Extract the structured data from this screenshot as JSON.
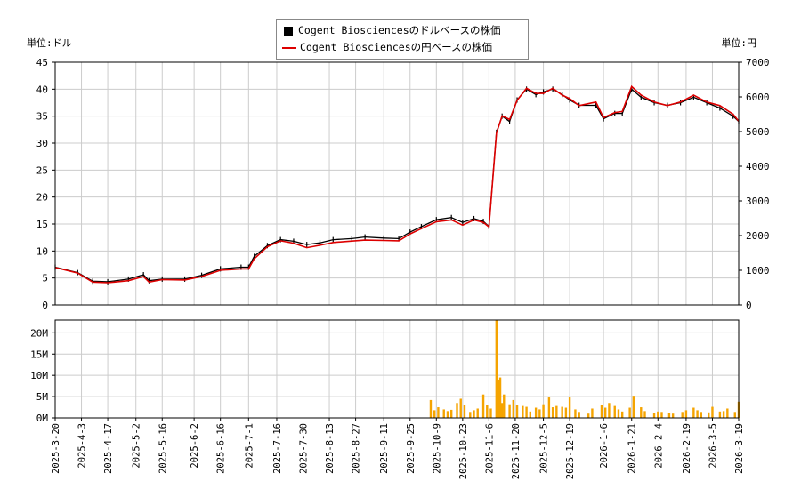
{
  "units": {
    "left": "単位:ドル",
    "right": "単位:円"
  },
  "legend": {
    "usd_label": "Cogent Biosciencesのドルベースの株価",
    "jpy_label": "Cogent Biosciencesの円ベースの株価"
  },
  "colors": {
    "usd": "#000000",
    "jpy": "#dd0000",
    "volume": "#f5a400",
    "grid": "#cccccc"
  },
  "chart_data": [
    {
      "type": "line",
      "title": "",
      "grid": true,
      "legend_position": "top-center",
      "x_ticks": [
        "2025-3-20",
        "2025-4-3",
        "2025-4-17",
        "2025-5-2",
        "2025-5-16",
        "2025-6-2",
        "2025-6-16",
        "2025-7-1",
        "2025-7-16",
        "2025-7-30",
        "2025-8-13",
        "2025-8-27",
        "2025-9-11",
        "2025-9-25",
        "2025-10-9",
        "2025-10-23",
        "2025-11-6",
        "2025-11-20",
        "2025-12-5",
        "2025-12-19",
        "2026-1-6",
        "2026-1-21",
        "2026-2-4",
        "2026-2-19",
        "2026-3-5",
        "2026-3-19"
      ],
      "y_left": {
        "label": "単位:ドル",
        "range": [
          0,
          45
        ],
        "ticks": [
          0,
          5,
          10,
          15,
          20,
          25,
          30,
          35,
          40,
          45
        ]
      },
      "y_right": {
        "label": "単位:円",
        "range": [
          0,
          7000
        ],
        "ticks": [
          0,
          1000,
          2000,
          3000,
          4000,
          5000,
          6000,
          7000
        ]
      },
      "series": [
        {
          "name": "Cogent Biosciencesのドルベースの株価",
          "axis": "left",
          "x": [
            "2025-3-20",
            "2025-4-1",
            "2025-4-9",
            "2025-4-17",
            "2025-4-28",
            "2025-5-6",
            "2025-5-9",
            "2025-5-16",
            "2025-5-28",
            "2025-6-6",
            "2025-6-16",
            "2025-6-27",
            "2025-7-1",
            "2025-7-4",
            "2025-7-11",
            "2025-7-18",
            "2025-7-25",
            "2025-8-1",
            "2025-8-8",
            "2025-8-15",
            "2025-8-25",
            "2025-9-1",
            "2025-9-11",
            "2025-9-19",
            "2025-9-25",
            "2025-10-1",
            "2025-10-9",
            "2025-10-17",
            "2025-10-23",
            "2025-10-29",
            "2025-11-3",
            "2025-11-6",
            "2025-11-10",
            "2025-11-13",
            "2025-11-17",
            "2025-11-21",
            "2025-11-26",
            "2025-12-1",
            "2025-12-5",
            "2025-12-10",
            "2025-12-15",
            "2025-12-19",
            "2025-12-24",
            "2026-1-2",
            "2026-1-6",
            "2026-1-12",
            "2026-1-16",
            "2026-1-21",
            "2026-1-26",
            "2026-2-2",
            "2026-2-9",
            "2026-2-16",
            "2026-2-23",
            "2026-3-2",
            "2026-3-9",
            "2026-3-16",
            "2026-3-19"
          ],
          "y": [
            7.0,
            6.0,
            4.4,
            4.3,
            4.8,
            5.6,
            4.5,
            4.8,
            4.8,
            5.5,
            6.7,
            7.0,
            7.0,
            9.0,
            11.0,
            12.1,
            11.8,
            11.2,
            11.5,
            12.1,
            12.3,
            12.6,
            12.4,
            12.3,
            13.5,
            14.5,
            15.8,
            16.2,
            15.3,
            16.0,
            15.5,
            14.5,
            32.0,
            35.0,
            34.0,
            38.0,
            40.0,
            39.0,
            39.5,
            40.0,
            39.0,
            38.0,
            37.0,
            37.0,
            34.5,
            35.5,
            35.5,
            40.0,
            38.5,
            37.5,
            37.0,
            37.5,
            38.5,
            37.5,
            36.5,
            35.0,
            34.0
          ]
        },
        {
          "name": "Cogent Biosciencesの円ベースの株価",
          "axis": "right",
          "x": [
            "2025-3-20",
            "2025-4-1",
            "2025-4-9",
            "2025-4-17",
            "2025-4-28",
            "2025-5-6",
            "2025-5-9",
            "2025-5-16",
            "2025-5-28",
            "2025-6-6",
            "2025-6-16",
            "2025-6-27",
            "2025-7-1",
            "2025-7-4",
            "2025-7-11",
            "2025-7-18",
            "2025-7-25",
            "2025-8-1",
            "2025-8-8",
            "2025-8-15",
            "2025-8-25",
            "2025-9-1",
            "2025-9-11",
            "2025-9-19",
            "2025-9-25",
            "2025-10-1",
            "2025-10-9",
            "2025-10-17",
            "2025-10-23",
            "2025-10-29",
            "2025-11-3",
            "2025-11-6",
            "2025-11-10",
            "2025-11-13",
            "2025-11-17",
            "2025-11-21",
            "2025-11-26",
            "2025-12-1",
            "2025-12-5",
            "2025-12-10",
            "2025-12-15",
            "2025-12-19",
            "2025-12-24",
            "2026-1-2",
            "2026-1-6",
            "2026-1-12",
            "2026-1-16",
            "2026-1-21",
            "2026-1-26",
            "2026-2-2",
            "2026-2-9",
            "2026-2-16",
            "2026-2-23",
            "2026-3-2",
            "2026-3-9",
            "2026-3-16",
            "2026-3-19"
          ],
          "y": [
            1080,
            920,
            660,
            640,
            700,
            820,
            660,
            730,
            720,
            820,
            1000,
            1040,
            1040,
            1330,
            1680,
            1850,
            1780,
            1650,
            1720,
            1800,
            1840,
            1870,
            1860,
            1850,
            2050,
            2200,
            2400,
            2450,
            2300,
            2450,
            2380,
            2250,
            4950,
            5450,
            5350,
            5900,
            6250,
            6100,
            6100,
            6250,
            6050,
            5950,
            5750,
            5850,
            5400,
            5550,
            5580,
            6300,
            6050,
            5850,
            5750,
            5850,
            6050,
            5850,
            5750,
            5500,
            5300
          ]
        }
      ]
    },
    {
      "type": "bar",
      "title": "",
      "grid": true,
      "y_range": [
        0,
        23000000
      ],
      "y_ticks": [
        "0M",
        "5M",
        "10M",
        "15M",
        "20M"
      ],
      "y_tick_values": [
        0,
        5000000,
        10000000,
        15000000,
        20000000
      ],
      "series": [
        {
          "name": "",
          "x": [
            "2025-10-6",
            "2025-10-8",
            "2025-10-10",
            "2025-10-13",
            "2025-10-15",
            "2025-10-17",
            "2025-10-20",
            "2025-10-22",
            "2025-10-24",
            "2025-10-27",
            "2025-10-29",
            "2025-10-31",
            "2025-11-3",
            "2025-11-5",
            "2025-11-7",
            "2025-11-10",
            "2025-11-11",
            "2025-11-12",
            "2025-11-13",
            "2025-11-14",
            "2025-11-17",
            "2025-11-19",
            "2025-11-21",
            "2025-11-24",
            "2025-11-26",
            "2025-11-28",
            "2025-12-1",
            "2025-12-3",
            "2025-12-5",
            "2025-12-8",
            "2025-12-10",
            "2025-12-12",
            "2025-12-15",
            "2025-12-17",
            "2025-12-19",
            "2025-12-22",
            "2025-12-24",
            "2025-12-29",
            "2025-12-31",
            "2026-1-5",
            "2026-1-7",
            "2026-1-9",
            "2026-1-12",
            "2026-1-14",
            "2026-1-16",
            "2026-1-20",
            "2026-1-22",
            "2026-1-26",
            "2026-1-28",
            "2026-2-2",
            "2026-2-4",
            "2026-2-6",
            "2026-2-10",
            "2026-2-12",
            "2026-2-17",
            "2026-2-19",
            "2026-2-23",
            "2026-2-25",
            "2026-2-27",
            "2026-3-3",
            "2026-3-5",
            "2026-3-9",
            "2026-3-11",
            "2026-3-13",
            "2026-3-17",
            "2026-3-19"
          ],
          "y": [
            4200000,
            1800000,
            2500000,
            2000000,
            1600000,
            1900000,
            3500000,
            4500000,
            3000000,
            1400000,
            1800000,
            2200000,
            5500000,
            3000000,
            2200000,
            23000000,
            9000000,
            9500000,
            3500000,
            5500000,
            3200000,
            4200000,
            3000000,
            2800000,
            2600000,
            1500000,
            2400000,
            2000000,
            3200000,
            4800000,
            2500000,
            2800000,
            2600000,
            2400000,
            4800000,
            2000000,
            1400000,
            1000000,
            2200000,
            3000000,
            2400000,
            3500000,
            2800000,
            2000000,
            1500000,
            2400000,
            5200000,
            2500000,
            1600000,
            1200000,
            1500000,
            1400000,
            1200000,
            1000000,
            1400000,
            1800000,
            2400000,
            1800000,
            1400000,
            1300000,
            2600000,
            1500000,
            1600000,
            2200000,
            1400000,
            3800000
          ]
        }
      ]
    }
  ]
}
